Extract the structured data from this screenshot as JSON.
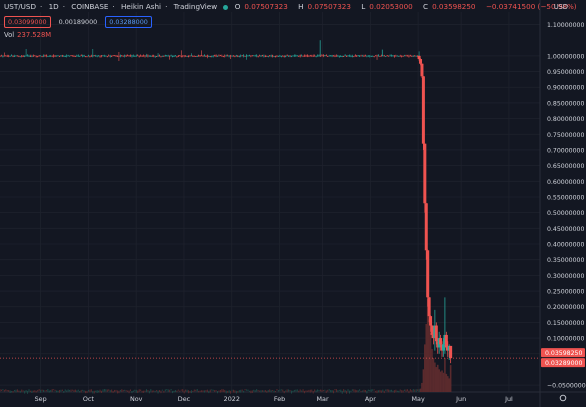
{
  "legend": {
    "symbol": "UST/USD",
    "interval": "1D",
    "exchange": "COINBASE",
    "style": "Heikin Ashi",
    "source": "TradingView",
    "o_key": "O",
    "o_val": "0.07507323",
    "h_key": "H",
    "h_val": "0.07507323",
    "l_key": "L",
    "l_val": "0.02053000",
    "c_key": "C",
    "c_val": "0.03598250",
    "change": "−0.03741500 (−50.98%)"
  },
  "boxes": {
    "sell": "0.03099000",
    "spread": "0.00189000",
    "buy": "0.03288000"
  },
  "volume": {
    "label": "Vol",
    "value": "237.528M"
  },
  "currency": "USD",
  "colors": {
    "up": "#26a69a",
    "down": "#ef5350",
    "bg": "#131722",
    "grid": "#1e222d",
    "text": "#d1d4dc"
  },
  "chart_data": {
    "type": "candlestick",
    "price_axis": {
      "ticks": [
        "1.10000000",
        "1.00000000",
        "0.95000000",
        "0.90000000",
        "0.85000000",
        "0.80000000",
        "0.75000000",
        "0.70000000",
        "0.65000000",
        "0.60000000",
        "0.55000000",
        "0.50000000",
        "0.45000000",
        "0.40000000",
        "0.35000000",
        "0.30000000",
        "0.25000000",
        "0.20000000",
        "0.15000000",
        "0.10000000",
        "0.05000000",
        "−0.05000000"
      ],
      "tick_values": [
        1.1,
        1.0,
        0.95,
        0.9,
        0.85,
        0.8,
        0.75,
        0.7,
        0.65,
        0.6,
        0.55,
        0.5,
        0.45,
        0.4,
        0.35,
        0.3,
        0.25,
        0.2,
        0.15,
        0.1,
        0.05,
        -0.05
      ],
      "range": [
        -0.072,
        1.14
      ]
    },
    "price_labels": [
      {
        "text": "0.03598250",
        "value": 0.0359825
      },
      {
        "text": "0.03289000",
        "value": 0.03289
      }
    ],
    "time_axis": {
      "labels": [
        "Sep",
        "Oct",
        "Nov",
        "Dec",
        "2022",
        "Feb",
        "Mar",
        "Apr",
        "May",
        "Jun",
        "Jul"
      ],
      "positions": [
        0.15,
        1.15,
        2.15,
        3.15,
        4.15,
        5.15,
        6.05,
        7.05,
        8.05,
        8.95,
        9.95
      ],
      "range": [
        -0.7,
        10.6
      ]
    },
    "stable_period": {
      "x_range": [
        -0.7,
        8.1
      ],
      "value": 1.0
    },
    "candles": [
      {
        "x": 8.07,
        "o": 1.0,
        "h": 1.0,
        "l": 0.985,
        "c": 0.99
      },
      {
        "x": 8.1,
        "o": 0.99,
        "h": 0.992,
        "l": 0.97,
        "c": 0.975
      },
      {
        "x": 8.13,
        "o": 0.975,
        "h": 0.976,
        "l": 0.93,
        "c": 0.935
      },
      {
        "x": 8.16,
        "o": 0.935,
        "h": 0.936,
        "l": 0.7,
        "c": 0.72
      },
      {
        "x": 8.19,
        "o": 0.72,
        "h": 0.721,
        "l": 0.5,
        "c": 0.53
      },
      {
        "x": 8.22,
        "o": 0.53,
        "h": 0.531,
        "l": 0.35,
        "c": 0.38
      },
      {
        "x": 8.25,
        "o": 0.38,
        "h": 0.382,
        "l": 0.2,
        "c": 0.23
      },
      {
        "x": 8.28,
        "o": 0.23,
        "h": 0.231,
        "l": 0.15,
        "c": 0.17
      },
      {
        "x": 8.31,
        "o": 0.17,
        "h": 0.172,
        "l": 0.12,
        "c": 0.14
      },
      {
        "x": 8.34,
        "o": 0.14,
        "h": 0.141,
        "l": 0.1,
        "c": 0.11
      },
      {
        "x": 8.37,
        "o": 0.11,
        "h": 0.13,
        "l": 0.08,
        "c": 0.1
      },
      {
        "x": 8.4,
        "o": 0.1,
        "h": 0.19,
        "l": 0.06,
        "c": 0.14
      },
      {
        "x": 8.43,
        "o": 0.14,
        "h": 0.15,
        "l": 0.08,
        "c": 0.09
      },
      {
        "x": 8.46,
        "o": 0.09,
        "h": 0.1,
        "l": 0.05,
        "c": 0.07
      },
      {
        "x": 8.49,
        "o": 0.07,
        "h": 0.12,
        "l": 0.05,
        "c": 0.1
      },
      {
        "x": 8.52,
        "o": 0.1,
        "h": 0.11,
        "l": 0.06,
        "c": 0.08
      },
      {
        "x": 8.55,
        "o": 0.08,
        "h": 0.09,
        "l": 0.04,
        "c": 0.06
      },
      {
        "x": 8.58,
        "o": 0.06,
        "h": 0.1,
        "l": 0.04,
        "c": 0.08
      },
      {
        "x": 8.61,
        "o": 0.08,
        "h": 0.23,
        "l": 0.05,
        "c": 0.11
      },
      {
        "x": 8.64,
        "o": 0.11,
        "h": 0.12,
        "l": 0.06,
        "c": 0.07
      },
      {
        "x": 8.67,
        "o": 0.07,
        "h": 0.09,
        "l": 0.04,
        "c": 0.06
      },
      {
        "x": 8.7,
        "o": 0.06,
        "h": 0.08,
        "l": 0.03,
        "c": 0.075
      },
      {
        "x": 8.73,
        "o": 0.075,
        "h": 0.075,
        "l": 0.02,
        "c": 0.036
      }
    ],
    "volume_range_M": [
      0,
      900
    ],
    "volume_bars_M": [
      {
        "x": 8.1,
        "v": 30
      },
      {
        "x": 8.13,
        "v": 80
      },
      {
        "x": 8.16,
        "v": 200
      },
      {
        "x": 8.19,
        "v": 420
      },
      {
        "x": 8.22,
        "v": 600
      },
      {
        "x": 8.25,
        "v": 820
      },
      {
        "x": 8.28,
        "v": 640
      },
      {
        "x": 8.31,
        "v": 520
      },
      {
        "x": 8.34,
        "v": 380
      },
      {
        "x": 8.37,
        "v": 300
      },
      {
        "x": 8.4,
        "v": 260
      },
      {
        "x": 8.43,
        "v": 220
      },
      {
        "x": 8.46,
        "v": 240
      },
      {
        "x": 8.49,
        "v": 200
      },
      {
        "x": 8.52,
        "v": 180
      },
      {
        "x": 8.55,
        "v": 190
      },
      {
        "x": 8.58,
        "v": 170
      },
      {
        "x": 8.61,
        "v": 300
      },
      {
        "x": 8.64,
        "v": 160
      },
      {
        "x": 8.67,
        "v": 140
      },
      {
        "x": 8.7,
        "v": 120
      },
      {
        "x": 8.73,
        "v": 237.528
      }
    ]
  }
}
